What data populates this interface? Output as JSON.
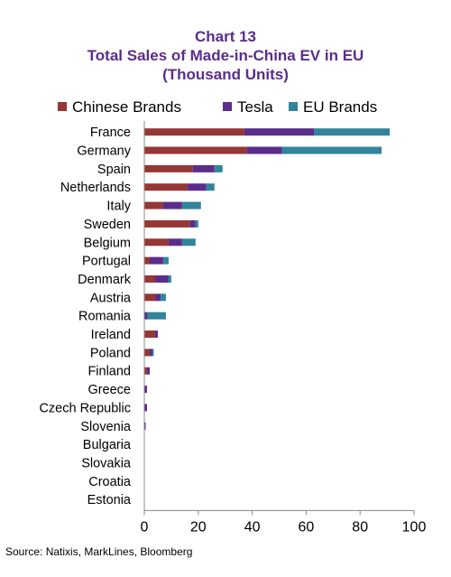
{
  "chart_data": {
    "type": "bar",
    "orientation": "horizontal",
    "stacked": true,
    "title": [
      "Chart 13",
      "Total Sales of Made-in-China EV in EU",
      "(Thousand Units)"
    ],
    "categories": [
      "France",
      "Germany",
      "Spain",
      "Netherlands",
      "Italy",
      "Sweden",
      "Belgium",
      "Portugal",
      "Denmark",
      "Austria",
      "Romania",
      "Ireland",
      "Poland",
      "Finland",
      "Greece",
      "Czech Republic",
      "Slovenia",
      "Bulgaria",
      "Slovakia",
      "Croatia",
      "Estonia"
    ],
    "series": [
      {
        "name": "Chinese Brands",
        "color": "#953735",
        "values": [
          37,
          38,
          18,
          16,
          7,
          17,
          9,
          2,
          4,
          4,
          0,
          4,
          2,
          1,
          0,
          0,
          0,
          0,
          0,
          0,
          0
        ]
      },
      {
        "name": "Tesla",
        "color": "#5b2d8a",
        "values": [
          26,
          13,
          8,
          7,
          7,
          2,
          5,
          5,
          5,
          2,
          1,
          1,
          1,
          1,
          1,
          1,
          0.5,
          0,
          0,
          0,
          0
        ]
      },
      {
        "name": "EU Brands",
        "color": "#31849b",
        "values": [
          28,
          37,
          3,
          3,
          7,
          1,
          5,
          2,
          1,
          2,
          7,
          0,
          0.5,
          0,
          0,
          0,
          0,
          0,
          0,
          0,
          0
        ]
      }
    ],
    "xlim": [
      0,
      100
    ],
    "xticks": [
      0,
      20,
      40,
      60,
      80,
      100
    ],
    "legend": "top",
    "grid": false
  },
  "source": "Source: Natixis, MarkLines, Bloomberg"
}
